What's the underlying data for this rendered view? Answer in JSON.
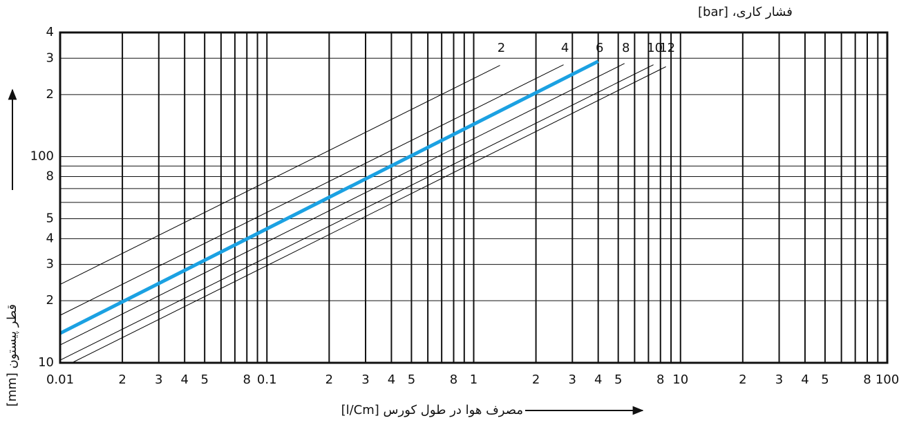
{
  "chart_data": {
    "type": "line",
    "title": "فشار کاری، [bar]",
    "x_label": "مصرف هوا در طول کورس [l/Cm]",
    "y_label": "قطر پیستون [mm]",
    "xscale": "log",
    "yscale": "log",
    "grid": true,
    "xlim": [
      0.01,
      100
    ],
    "ylim": [
      10,
      400
    ],
    "xticks": [
      {
        "value": 0.01,
        "label": "0.01"
      },
      {
        "value": 0.02,
        "label": "2"
      },
      {
        "value": 0.03,
        "label": "3"
      },
      {
        "value": 0.04,
        "label": "4"
      },
      {
        "value": 0.05,
        "label": "5"
      },
      {
        "value": 0.08,
        "label": "8"
      },
      {
        "value": 0.1,
        "label": "0.1"
      },
      {
        "value": 0.2,
        "label": "2"
      },
      {
        "value": 0.3,
        "label": "3"
      },
      {
        "value": 0.4,
        "label": "4"
      },
      {
        "value": 0.5,
        "label": "5"
      },
      {
        "value": 0.8,
        "label": "8"
      },
      1,
      2,
      3,
      4,
      5,
      {
        "value": 8,
        "label": "8"
      },
      10,
      {
        "value": 20,
        "label": "2"
      },
      {
        "value": 30,
        "label": "3"
      },
      {
        "value": 40,
        "label": "4"
      },
      {
        "value": 50,
        "label": "5"
      },
      {
        "value": 80,
        "label": "8"
      },
      100
    ],
    "minor_xticks": [
      0.06,
      0.07,
      0.09,
      0.6,
      0.7,
      0.9,
      6,
      7,
      9,
      60,
      70,
      90
    ],
    "yticks": [
      10,
      {
        "value": 20,
        "label": "2"
      },
      {
        "value": 30,
        "label": "3"
      },
      {
        "value": 40,
        "label": "4"
      },
      {
        "value": 50,
        "label": "5"
      },
      {
        "value": 80,
        "label": "8"
      },
      100,
      {
        "value": 200,
        "label": "2"
      },
      {
        "value": 300,
        "label": "3"
      },
      {
        "value": 400,
        "label": "4"
      }
    ],
    "minor_yticks": [
      60,
      70,
      90
    ],
    "series": [
      {
        "name": "2",
        "color": "#000000",
        "linewidth": 1,
        "x": [
          0.01,
          1.34
        ],
        "y": [
          24,
          277
        ]
      },
      {
        "name": "4",
        "color": "#000000",
        "linewidth": 1,
        "x": [
          0.01,
          2.72
        ],
        "y": [
          17,
          279
        ]
      },
      {
        "name": "6",
        "color": "#1ba1e2",
        "linewidth": 5,
        "x": [
          0.01,
          4
        ],
        "y": [
          13.9,
          290
        ]
      },
      {
        "name": "8",
        "color": "#000000",
        "linewidth": 1,
        "x": [
          0.01,
          5.36
        ],
        "y": [
          12.2,
          283
        ]
      },
      {
        "name": "10",
        "color": "#000000",
        "linewidth": 1,
        "x": [
          0.01,
          7.4
        ],
        "y": [
          10.3,
          279
        ]
      },
      {
        "name": "12",
        "color": "#000000",
        "linewidth": 1,
        "x": [
          0.0114,
          8.5
        ],
        "y": [
          10,
          273
        ]
      }
    ]
  }
}
